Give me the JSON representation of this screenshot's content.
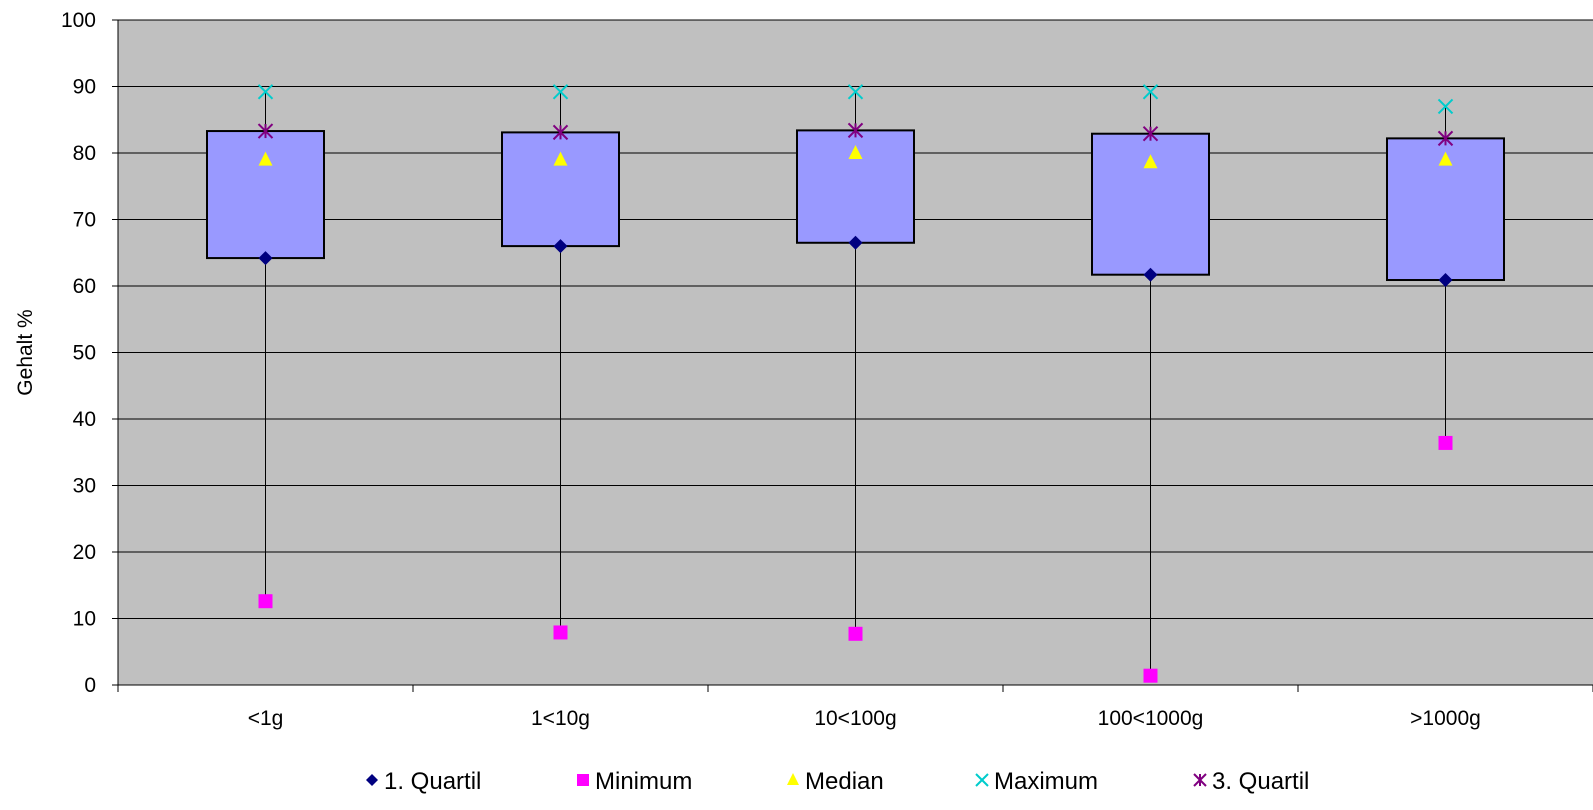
{
  "chart_data": {
    "type": "boxplot",
    "categories": [
      "<1g",
      "1<10g",
      "10<100g",
      "100<1000g",
      ">1000g"
    ],
    "ylabel": "Gehalt %",
    "ylim": [
      0,
      100
    ],
    "yticks": [
      0,
      10,
      20,
      30,
      40,
      50,
      60,
      70,
      80,
      90,
      100
    ],
    "grid": true,
    "legend_position": "bottom",
    "series": [
      {
        "name": "1. Quartil",
        "marker": "diamond",
        "color": "#000080",
        "values": [
          64.2,
          66.0,
          66.5,
          61.7,
          60.9
        ]
      },
      {
        "name": "Minimum",
        "marker": "square",
        "color": "#FF00FF",
        "values": [
          12.6,
          7.9,
          7.7,
          1.4,
          36.4
        ]
      },
      {
        "name": "Median",
        "marker": "triangle",
        "color": "#FFFF00",
        "values": [
          79.0,
          79.0,
          80.0,
          78.6,
          79.0
        ]
      },
      {
        "name": "Maximum",
        "marker": "x",
        "color": "#00CCCC",
        "values": [
          89.2,
          89.2,
          89.2,
          89.2,
          87.0
        ]
      },
      {
        "name": "3. Quartil",
        "marker": "star",
        "color": "#800080",
        "values": [
          83.3,
          83.1,
          83.4,
          82.9,
          82.2
        ]
      }
    ],
    "colors": {
      "plot_background": "#C0C0C0",
      "box_fill": "#9999FF",
      "box_stroke": "#000000",
      "gridline": "#000000"
    }
  }
}
